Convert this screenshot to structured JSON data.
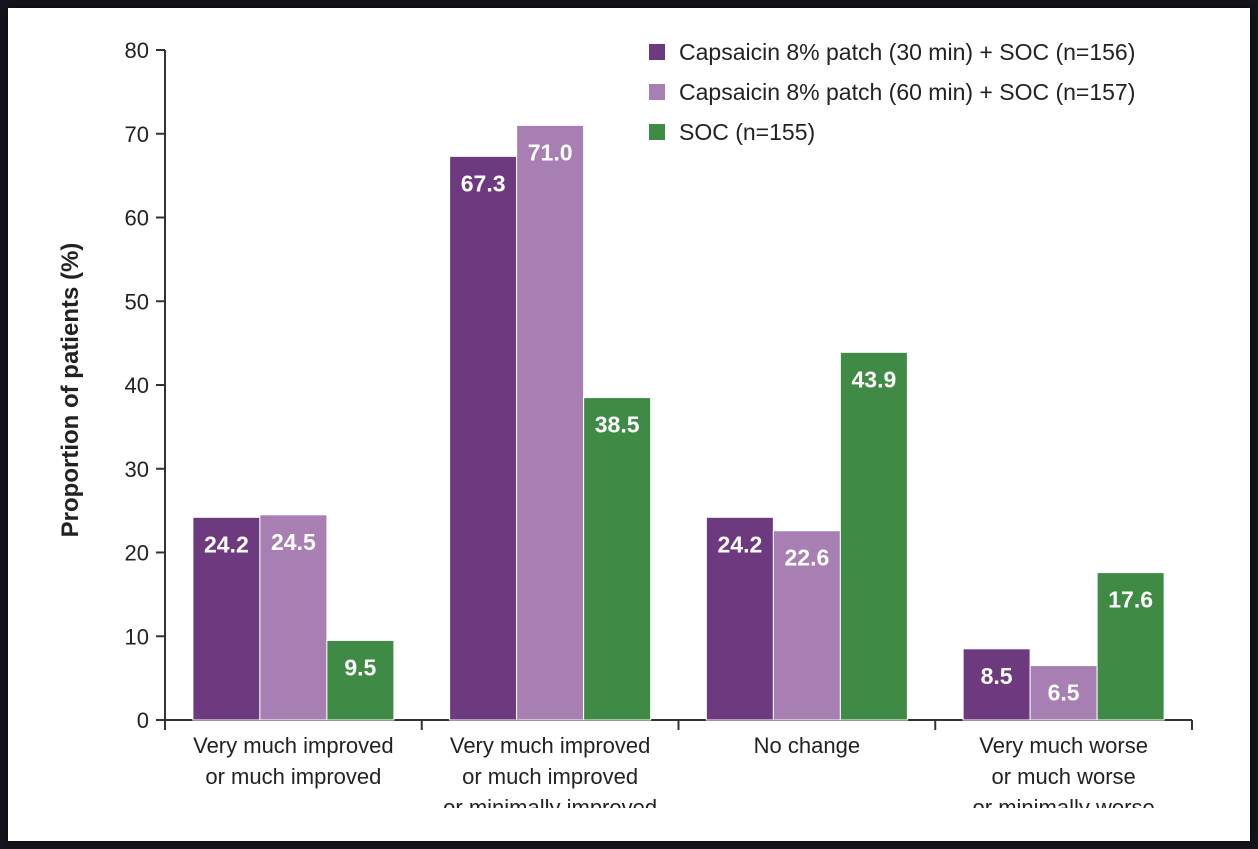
{
  "chart_data": {
    "type": "bar",
    "ylabel": "Proportion of patients (%)",
    "ylim": [
      0,
      80
    ],
    "yticks": [
      0,
      10,
      20,
      30,
      40,
      50,
      60,
      70,
      80
    ],
    "categories": [
      [
        "Very much improved",
        "or much improved"
      ],
      [
        "Very much improved",
        "or much improved",
        "or minimally improved"
      ],
      [
        "No change"
      ],
      [
        "Very much worse",
        "or much worse",
        "or minimally worse"
      ]
    ],
    "series": [
      {
        "name": "Capsaicin 8% patch (30 min) + SOC (n=156)",
        "color": "#6d3a80",
        "values": [
          24.2,
          67.3,
          24.2,
          8.5
        ],
        "labels": [
          "24.2",
          "67.3",
          "24.2",
          "8.5"
        ]
      },
      {
        "name": "Capsaicin 8% patch (60 min) + SOC (n=157)",
        "color": "#a77fb3",
        "values": [
          24.5,
          71.0,
          22.6,
          6.5
        ],
        "labels": [
          "24.5",
          "71.0",
          "22.6",
          "6.5"
        ]
      },
      {
        "name": "SOC (n=155)",
        "color": "#3f8a44",
        "values": [
          9.5,
          38.5,
          43.9,
          17.6
        ],
        "labels": [
          "9.5",
          "38.5",
          "43.9",
          "17.6"
        ]
      }
    ],
    "legend_position": "top-right",
    "grid": false
  }
}
